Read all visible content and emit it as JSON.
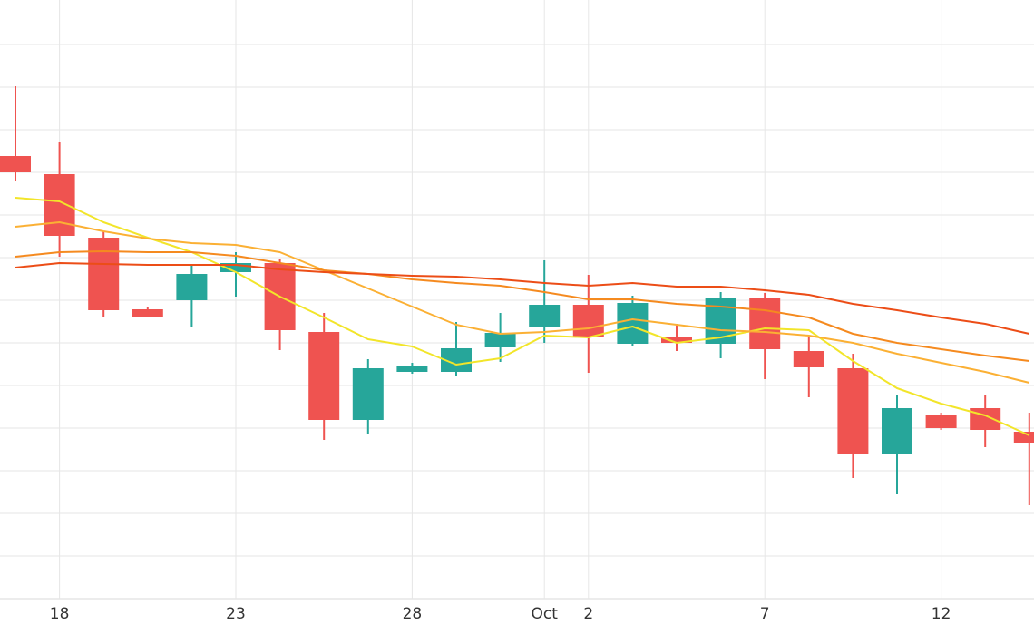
{
  "chart_data": {
    "type": "candlestick",
    "categories": [
      null,
      "18",
      null,
      null,
      null,
      "23",
      null,
      null,
      null,
      "28",
      null,
      null,
      "Oct",
      "2",
      null,
      null,
      null,
      "7",
      null,
      null,
      null,
      "12",
      null,
      null
    ],
    "open": [
      488,
      468,
      398,
      319,
      329,
      360,
      370,
      294,
      197,
      250,
      250,
      277,
      300,
      324,
      281,
      288,
      281,
      332,
      273,
      254,
      159,
      203,
      210,
      184
    ],
    "high": [
      565,
      503,
      405,
      321,
      367,
      382,
      375,
      315,
      264,
      260,
      305,
      315,
      373,
      357,
      334,
      303,
      338,
      337,
      288,
      270,
      224,
      205,
      224,
      205
    ],
    "low": [
      460,
      377,
      310,
      310,
      300,
      333,
      274,
      175,
      181,
      248,
      245,
      261,
      282,
      249,
      278,
      273,
      265,
      242,
      222,
      133,
      115,
      186,
      167,
      103
    ],
    "close": [
      470,
      400,
      318,
      311,
      358,
      370,
      296,
      197,
      254,
      256,
      276,
      293,
      324,
      289,
      326,
      282,
      331,
      275,
      255,
      159,
      210,
      188,
      186,
      172
    ],
    "up_color": "#26a69a",
    "down_color": "#ef5350",
    "series": [
      {
        "color": "#f2e52a",
        "values": [
          442,
          438,
          415,
          398,
          382,
          360,
          333,
          310,
          286,
          278,
          258,
          265,
          290,
          288,
          300,
          282,
          288,
          298,
          296,
          262,
          232,
          215,
          202,
          180
        ]
      },
      {
        "color": "#fbb034",
        "values": [
          410,
          415,
          405,
          397,
          392,
          390,
          382,
          362,
          342,
          322,
          302,
          292,
          294,
          298,
          308,
          302,
          296,
          294,
          290,
          282,
          270,
          260,
          250,
          238
        ]
      },
      {
        "color": "#f58a1f",
        "values": [
          377,
          382,
          383,
          382,
          382,
          378,
          370,
          362,
          358,
          352,
          348,
          345,
          338,
          330,
          330,
          325,
          322,
          318,
          310,
          292,
          282,
          275,
          268,
          262
        ]
      },
      {
        "color": "#ec4d17",
        "values": [
          365,
          370,
          369,
          368,
          368,
          368,
          363,
          360,
          358,
          356,
          355,
          352,
          348,
          345,
          348,
          344,
          344,
          340,
          335,
          325,
          318,
          310,
          303,
          292
        ]
      }
    ],
    "ylim": [
      0,
      660
    ],
    "yticks": [
      47,
      94,
      141,
      188,
      235,
      282,
      329,
      376,
      423,
      470,
      517,
      564,
      611
    ],
    "grid": true
  }
}
